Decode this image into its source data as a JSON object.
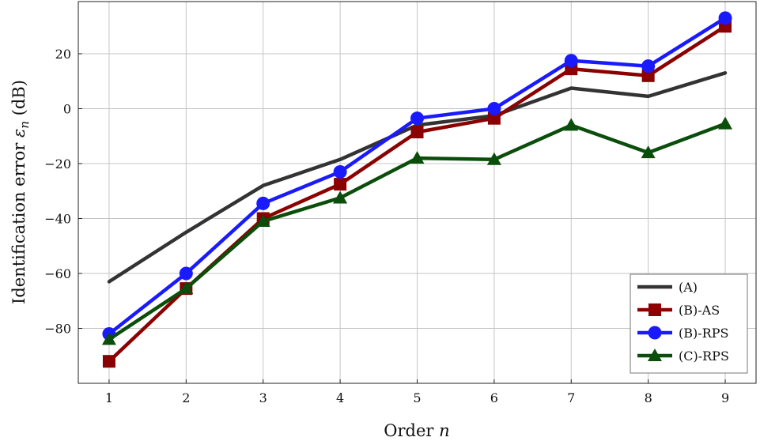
{
  "chart_data": {
    "type": "line",
    "xlabel": "Order",
    "xlabel_var": "n",
    "ylabel": "Identification error",
    "ylabel_var": "ε",
    "ylabel_sub": "n",
    "ylabel_unit": "(dB)",
    "x": [
      1,
      2,
      3,
      4,
      5,
      6,
      7,
      8,
      9
    ],
    "xlim": [
      0.6,
      9.4
    ],
    "ylim": [
      -100,
      39
    ],
    "x_ticks": [
      "1",
      "2",
      "3",
      "4",
      "5",
      "6",
      "7",
      "8",
      "9"
    ],
    "y_ticks": [
      20,
      0,
      -20,
      -40,
      -60,
      -80
    ],
    "y_tick_labels": [
      "20",
      "0",
      "−20",
      "−40",
      "−60",
      "−80"
    ],
    "grid": true,
    "legend_position": "bottom-right",
    "series": [
      {
        "name": "(A)",
        "color": "#333333",
        "marker": "none",
        "values": [
          -63,
          -45,
          -28,
          -18.5,
          -6,
          -2.5,
          7.5,
          4.5,
          13
        ]
      },
      {
        "name": "(B)-AS",
        "color": "#8b0000",
        "marker": "square",
        "values": [
          -92,
          -65.5,
          -40,
          -27.5,
          -8.5,
          -3.5,
          14.5,
          12,
          30
        ]
      },
      {
        "name": "(B)-RPS",
        "color": "#1a1aff",
        "marker": "circle",
        "values": [
          -82,
          -60,
          -34.5,
          -23,
          -3.5,
          0,
          17.5,
          15.5,
          33
        ]
      },
      {
        "name": "(C)-RPS",
        "color": "#0b4d0b",
        "marker": "triangle",
        "values": [
          -84,
          -65.5,
          -41,
          -32.5,
          -18,
          -18.5,
          -6,
          -16,
          -5.5
        ]
      }
    ]
  }
}
